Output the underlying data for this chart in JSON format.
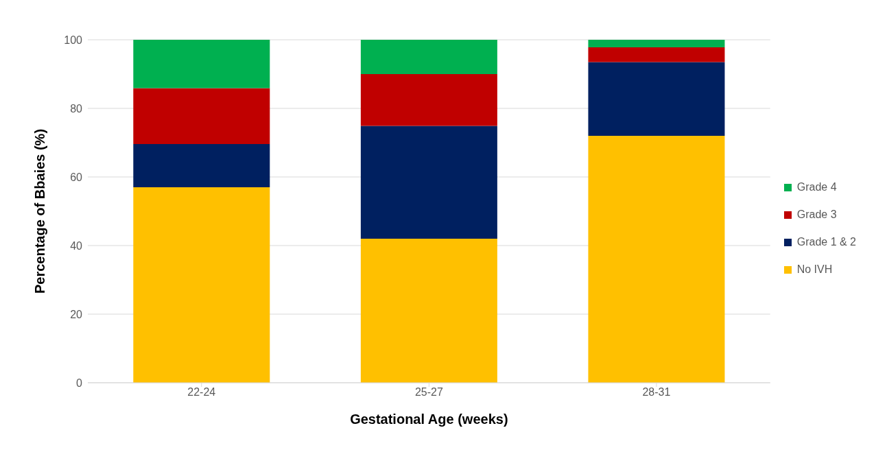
{
  "chart_data": {
    "type": "bar",
    "stacked": true,
    "xlabel": "Gestational Age (weeks)",
    "ylabel": "Percentage of Bbaies (%)",
    "categories": [
      "22-24",
      "25-27",
      "28-31"
    ],
    "series": [
      {
        "name": "No IVH",
        "color": "#ffc000",
        "values": [
          57,
          42,
          72
        ]
      },
      {
        "name": "Grade 1 & 2",
        "color": "#002060",
        "values": [
          12.6,
          32.9,
          21.5
        ]
      },
      {
        "name": "Grade 3",
        "color": "#c00000",
        "values": [
          16.3,
          15.1,
          4.3
        ]
      },
      {
        "name": "Grade 4",
        "color": "#00b050",
        "values": [
          14.1,
          10,
          2.2
        ]
      }
    ],
    "ylim": [
      0,
      100
    ],
    "yticks": [
      0,
      20,
      40,
      60,
      80,
      100
    ],
    "grid": "y",
    "legend": "right"
  }
}
